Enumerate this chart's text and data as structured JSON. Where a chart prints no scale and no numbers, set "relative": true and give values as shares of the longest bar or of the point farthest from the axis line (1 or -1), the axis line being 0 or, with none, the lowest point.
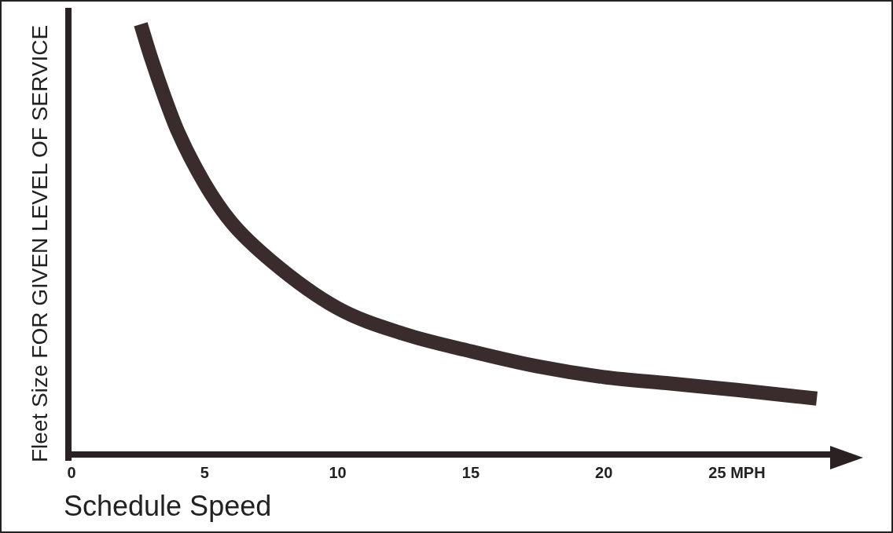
{
  "chart_data": {
    "type": "line",
    "xlabel": "Schedule Speed",
    "ylabel": "Fleet Size FOR GIVEN LEVEL OF SERVICE",
    "relative": true,
    "x": [
      2.6,
      3.0,
      3.5,
      4.0,
      5.0,
      6.0,
      7.5,
      10,
      12.5,
      15,
      17.5,
      20,
      22.5,
      25,
      28
    ],
    "series": [
      {
        "color": "#3a2c2c",
        "values": [
          1.0,
          0.92,
          0.83,
          0.75,
          0.63,
          0.54,
          0.45,
          0.34,
          0.28,
          0.24,
          0.205,
          0.18,
          0.165,
          0.15,
          0.13
        ]
      }
    ],
    "xlim": [
      0,
      28.5
    ],
    "xticks": [
      0,
      5,
      10,
      15,
      20,
      {
        "value": 25,
        "label": "25 MPH"
      }
    ],
    "grid": false,
    "legend": false,
    "marker": "none",
    "line_style": "solid"
  }
}
